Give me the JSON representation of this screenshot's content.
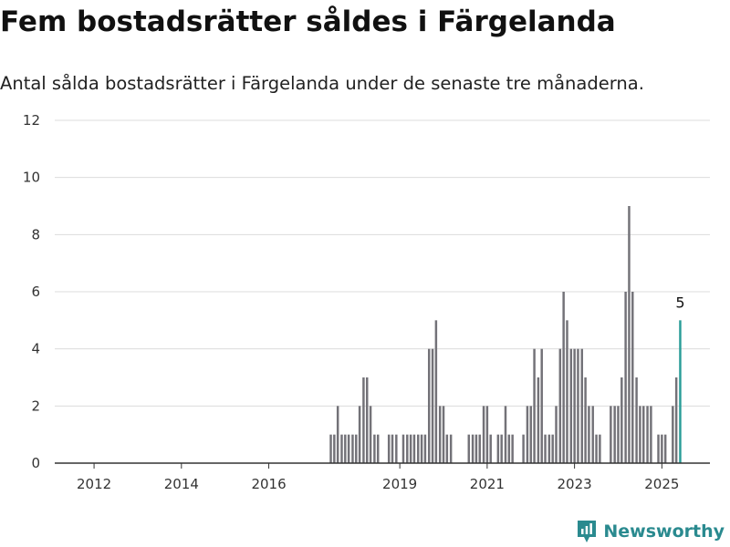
{
  "header": {
    "title": "Fem bostadsrätter såldes i Färgelanda",
    "subtitle": "Antal sålda bostadsrätter i Färgelanda under de senaste tre månaderna."
  },
  "brand": {
    "name": "Newsworthy",
    "icon": "newsworthy-logo-icon",
    "color": "#2a8a8f"
  },
  "chart_data": {
    "type": "bar",
    "title": "",
    "xlabel": "",
    "ylabel": "",
    "ylim": [
      0,
      12
    ],
    "yticks": [
      0,
      2,
      4,
      6,
      8,
      10,
      12
    ],
    "xlim": [
      2011.1,
      2026.1
    ],
    "xticks": [
      2012,
      2014,
      2016,
      2019,
      2021,
      2023,
      2025
    ],
    "grid": "horizontal",
    "colors": {
      "bar": "#737278",
      "highlight": "#2a9d98"
    },
    "highlight_label": "5",
    "series": [
      {
        "name": "",
        "x": [
          2017.42,
          2017.5,
          2017.58,
          2017.67,
          2017.75,
          2017.83,
          2017.92,
          2018.0,
          2018.08,
          2018.17,
          2018.25,
          2018.33,
          2018.42,
          2018.5,
          2018.75,
          2018.83,
          2018.92,
          2019.08,
          2019.17,
          2019.25,
          2019.33,
          2019.42,
          2019.5,
          2019.58,
          2019.67,
          2019.75,
          2019.83,
          2019.92,
          2020.0,
          2020.08,
          2020.17,
          2020.58,
          2020.67,
          2020.75,
          2020.83,
          2020.92,
          2021.0,
          2021.08,
          2021.25,
          2021.33,
          2021.42,
          2021.5,
          2021.58,
          2021.83,
          2021.92,
          2022.0,
          2022.08,
          2022.17,
          2022.25,
          2022.33,
          2022.42,
          2022.5,
          2022.58,
          2022.67,
          2022.75,
          2022.83,
          2022.92,
          2023.0,
          2023.08,
          2023.17,
          2023.25,
          2023.33,
          2023.42,
          2023.5,
          2023.58,
          2023.83,
          2023.92,
          2024.0,
          2024.08,
          2024.17,
          2024.25,
          2024.33,
          2024.42,
          2024.5,
          2024.58,
          2024.67,
          2024.75,
          2024.92,
          2025.0,
          2025.08,
          2025.25,
          2025.33,
          2025.42
        ],
        "values": [
          1,
          1,
          2,
          1,
          1,
          1,
          1,
          1,
          2,
          3,
          3,
          2,
          1,
          1,
          1,
          1,
          1,
          1,
          1,
          1,
          1,
          1,
          1,
          1,
          4,
          4,
          5,
          2,
          2,
          1,
          1,
          1,
          1,
          1,
          1,
          2,
          2,
          1,
          1,
          1,
          2,
          1,
          1,
          1,
          2,
          2,
          4,
          3,
          4,
          1,
          1,
          1,
          2,
          4,
          6,
          5,
          4,
          4,
          4,
          4,
          3,
          2,
          2,
          1,
          1,
          2,
          2,
          2,
          3,
          6,
          9,
          6,
          3,
          2,
          2,
          2,
          2,
          1,
          1,
          1,
          2,
          3,
          5
        ]
      }
    ]
  }
}
